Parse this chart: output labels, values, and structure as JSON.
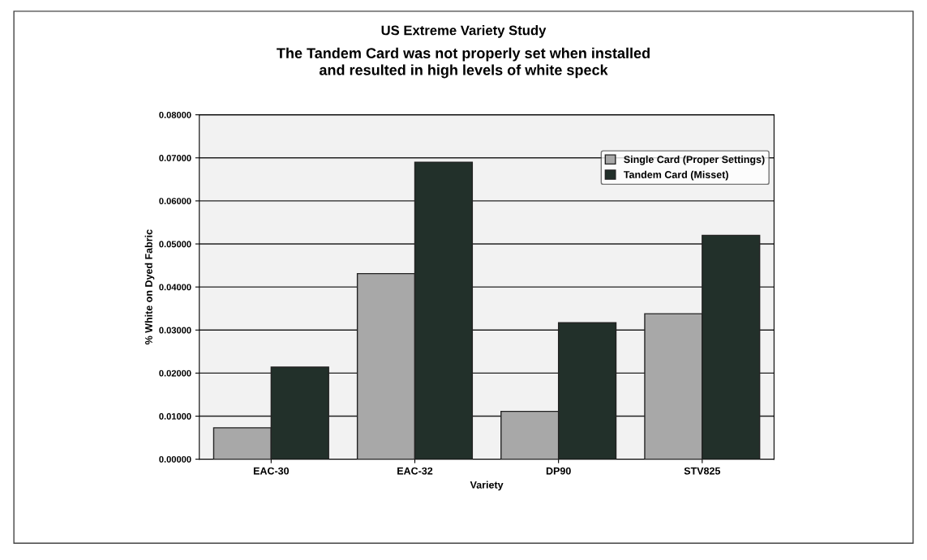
{
  "chart_data": {
    "type": "bar",
    "title": "US Extreme Variety Study",
    "subtitle": "The Tandem Card was not properly set when installed\nand resulted in high levels of white speck",
    "xlabel": "Variety",
    "ylabel": "% White on Dyed Fabric",
    "categories": [
      "EAC-30",
      "EAC-32",
      "DP90",
      "STV825"
    ],
    "series": [
      {
        "name": "Single Card (Proper Settings)",
        "color": "#a8a8a8",
        "values": [
          0.0073,
          0.0431,
          0.0111,
          0.0338
        ]
      },
      {
        "name": "Tandem Card (Misset)",
        "color": "#22302a",
        "values": [
          0.0214,
          0.069,
          0.0317,
          0.052
        ]
      }
    ],
    "ylim": [
      0,
      0.08
    ],
    "yticks": [
      {
        "value": 0,
        "label": "0.00000"
      },
      {
        "value": 0.01,
        "label": "0.01000"
      },
      {
        "value": 0.02,
        "label": "0.02000"
      },
      {
        "value": 0.03,
        "label": "0.03000"
      },
      {
        "value": 0.04,
        "label": "0.04000"
      },
      {
        "value": 0.05,
        "label": "0.05000"
      },
      {
        "value": 0.06,
        "label": "0.06000"
      },
      {
        "value": 0.07,
        "label": "0.07000"
      },
      {
        "value": 0.08,
        "label": "0.08000"
      }
    ],
    "grid": "y",
    "legend": "top right"
  }
}
